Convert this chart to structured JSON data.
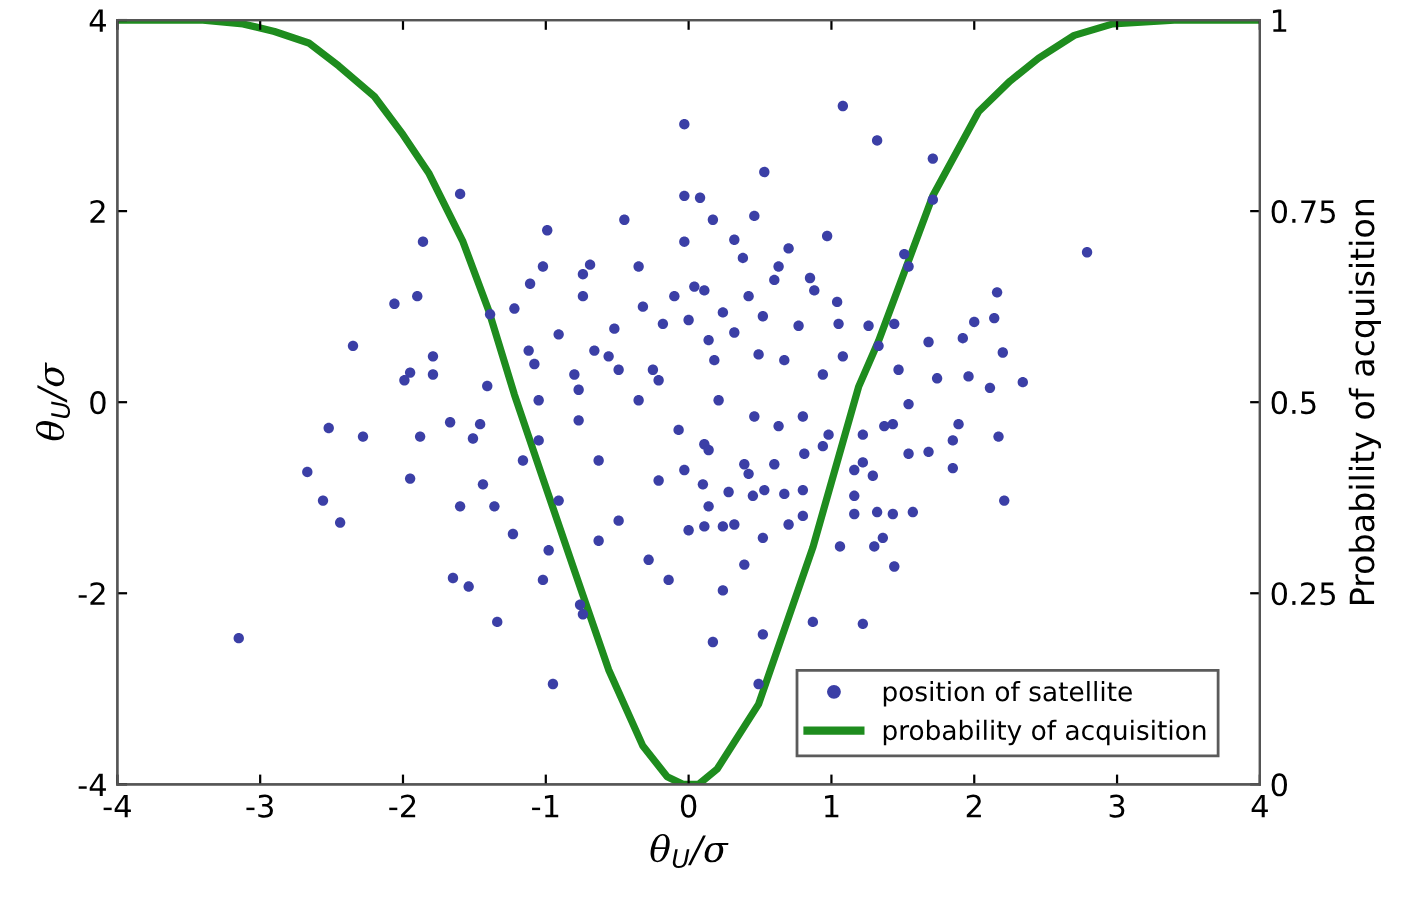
{
  "chart_data": {
    "type": "scatter",
    "xlabel": "θ$_{U}$/σ",
    "ylabel": "θ$_{U}$/σ",
    "y2label": "Probability of acquisition",
    "xlim": [
      -4,
      4
    ],
    "xticks": [
      -4,
      -3,
      -2,
      -1,
      0,
      1,
      2,
      3,
      4
    ],
    "ylim": [
      -4,
      4
    ],
    "yticks": [
      -4,
      -2,
      0,
      2,
      4
    ],
    "y2lim": [
      0,
      1
    ],
    "y2ticks": [
      0,
      0.25,
      0.5,
      0.75,
      1
    ],
    "grid": false,
    "legend": "bottom right",
    "series": [
      {
        "name": "position of satellite",
        "marker": "circle",
        "color": "#3b3fa6",
        "x": [
          -3.15,
          -2.67,
          -2.52,
          -2.56,
          -2.44,
          -2.28,
          -1.95,
          -1.88,
          -1.67,
          -1.51,
          -1.46,
          -1.44,
          -1.6,
          -1.36,
          -1.65,
          -1.54,
          -1.34,
          -1.23,
          -1.02,
          -0.95,
          -0.74,
          -0.76,
          -2.35,
          -2.06,
          -1.9,
          -1.86,
          -1.6,
          -1.99,
          -1.79,
          -1.79,
          -1.95,
          -1.41,
          -1.39,
          -1.22,
          -1.11,
          -1.02,
          -0.99,
          -0.74,
          -0.69,
          -0.74,
          -0.45,
          -0.35,
          -0.03,
          -0.03,
          -0.03,
          -0.52,
          -0.66,
          -0.91,
          -1.12,
          -0.32,
          -0.18,
          -0.1,
          -1.08,
          -0.8,
          -0.56,
          -0.25,
          1.08,
          1.32,
          1.71,
          0.53,
          0.08,
          0.17,
          0.46,
          0.97,
          1.71,
          2.79,
          1.51,
          1.54,
          0.7,
          0.32,
          0.38,
          0.63,
          0.6,
          0.85,
          0.88,
          1.04,
          2.16,
          2.14,
          2.0,
          1.92,
          2.2,
          2.34,
          2.11,
          1.96,
          1.74,
          1.68,
          1.44,
          1.33,
          1.26,
          1.05,
          1.08,
          0.42,
          0.24,
          0.04,
          0.11,
          0.52,
          0.77,
          0.67,
          0.49,
          0.32,
          0.18,
          0.94,
          1.47,
          1.89,
          1.85,
          2.17,
          2.21,
          1.85,
          1.68,
          1.54,
          1.57,
          1.43,
          1.32,
          1.36,
          1.3,
          1.44,
          1.06,
          1.22,
          0.87,
          0.52,
          0.17,
          0.49,
          0.24,
          0.39,
          0.52,
          0.7,
          0.8,
          0.8,
          0.67,
          0.53,
          0.45,
          0.28,
          0.14,
          0.24,
          0.32,
          0.11,
          1.16,
          1.16,
          1.16,
          1.29,
          1.22,
          0.94,
          0.81,
          0.6,
          0.39,
          0.42,
          0.1,
          -0.03,
          0.11,
          0.46,
          0.63,
          0.8,
          0.98,
          1.22,
          1.37,
          1.43,
          1.54,
          -0.63,
          -0.49,
          -0.21,
          -0.35,
          -0.77,
          -1.05,
          -0.91,
          -0.63,
          -0.14,
          0.0,
          -0.28,
          -0.07,
          0.14,
          0.21,
          -0.21,
          -0.49,
          0.0,
          0.14,
          -0.77,
          -1.05,
          -1.16,
          -0.98
        ],
        "values": [
          -2.47,
          -0.73,
          -0.27,
          -1.03,
          -1.26,
          -0.36,
          -0.8,
          -0.36,
          -0.21,
          -0.38,
          -0.23,
          -0.86,
          -1.09,
          -1.09,
          -1.84,
          -1.93,
          -2.3,
          -1.38,
          -1.86,
          -2.95,
          -2.22,
          -2.12,
          0.59,
          1.03,
          1.11,
          1.68,
          2.18,
          0.23,
          0.48,
          0.29,
          0.31,
          0.17,
          0.92,
          0.98,
          1.24,
          1.42,
          1.8,
          1.34,
          1.44,
          1.11,
          1.91,
          1.42,
          2.91,
          2.16,
          1.68,
          0.77,
          0.54,
          0.71,
          0.54,
          1.0,
          0.82,
          1.11,
          0.4,
          0.29,
          0.48,
          0.34,
          3.1,
          2.74,
          2.55,
          2.41,
          2.14,
          1.91,
          1.95,
          1.74,
          2.12,
          1.57,
          1.55,
          1.42,
          1.61,
          1.7,
          1.51,
          1.42,
          1.28,
          1.3,
          1.17,
          1.05,
          1.15,
          0.88,
          0.84,
          0.67,
          0.52,
          0.21,
          0.15,
          0.27,
          0.25,
          0.63,
          0.82,
          0.59,
          0.8,
          0.82,
          0.48,
          1.11,
          0.94,
          1.21,
          1.17,
          0.9,
          0.8,
          0.44,
          0.5,
          0.73,
          0.44,
          0.29,
          0.34,
          -0.23,
          -0.4,
          -0.36,
          -1.03,
          -0.69,
          -0.52,
          -0.54,
          -1.15,
          -1.17,
          -1.15,
          -1.42,
          -1.51,
          -1.72,
          -1.51,
          -2.32,
          -2.3,
          -2.43,
          -2.51,
          -2.95,
          -1.97,
          -1.7,
          -1.42,
          -1.28,
          -1.19,
          -0.92,
          -0.96,
          -0.92,
          -0.98,
          -0.94,
          -1.09,
          -1.3,
          -1.28,
          -1.3,
          -0.71,
          -0.98,
          -1.17,
          -0.77,
          -0.63,
          -0.46,
          -0.54,
          -0.65,
          -0.65,
          -0.75,
          -0.86,
          -0.71,
          -0.44,
          -0.15,
          -0.25,
          -0.15,
          -0.34,
          -0.34,
          -0.25,
          -0.23,
          -0.02,
          -0.61,
          -1.24,
          -0.82,
          0.02,
          -0.19,
          -0.4,
          -1.03,
          -1.45,
          -1.86,
          -1.34,
          -1.65,
          -0.29,
          -0.5,
          0.02,
          0.23,
          0.34,
          0.86,
          0.65,
          0.13,
          0.02,
          -0.61,
          -1.55
        ]
      },
      {
        "name": "probability of acquisition",
        "type": "line",
        "axis": "y2",
        "color": "#1e8c1e",
        "marker": "none",
        "line_style": "solid",
        "x": [
          -4,
          -3.4,
          -3.12,
          -2.9,
          -2.66,
          -2.45,
          -2.2,
          -2.0,
          -1.82,
          -1.58,
          -1.4,
          -1.22,
          -1.02,
          -0.8,
          -0.56,
          -0.32,
          -0.15,
          -0.04,
          0.07,
          0.2,
          0.49,
          0.87,
          1.19,
          1.33,
          1.71,
          2.03,
          2.25,
          2.45,
          2.7,
          2.97,
          3.4,
          4
        ],
        "values": [
          1,
          1,
          0.995,
          0.985,
          0.97,
          0.94,
          0.9,
          0.85,
          0.8,
          0.71,
          0.62,
          0.51,
          0.4,
          0.28,
          0.15,
          0.05,
          0.01,
          0,
          0,
          0.02,
          0.105,
          0.31,
          0.52,
          0.58,
          0.77,
          0.88,
          0.92,
          0.95,
          0.98,
          0.995,
          1,
          1
        ]
      }
    ]
  }
}
